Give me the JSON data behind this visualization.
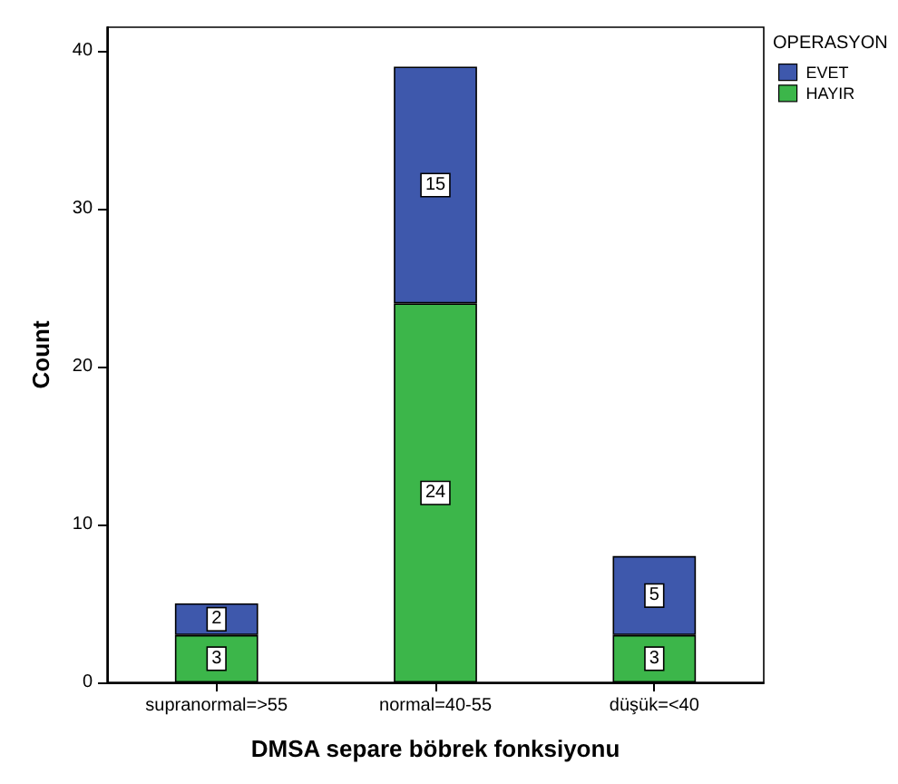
{
  "chart_data": {
    "type": "bar",
    "stacked": true,
    "xlabel": "DMSA separe böbrek fonksiyonu",
    "ylabel": "Count",
    "legend_title": "OPERASYON",
    "legend": "top right",
    "grid": false,
    "data_labels": true,
    "categories": [
      "supranormal=>55",
      "normal=40-55",
      "düşük=<40"
    ],
    "series": [
      {
        "name": "HAYIR",
        "color": "#3cb64a",
        "values": [
          3,
          24,
          3
        ]
      },
      {
        "name": "EVET",
        "color": "#3e58ac",
        "values": [
          2,
          15,
          5
        ]
      }
    ],
    "ylim": [
      0,
      41.5
    ],
    "yticks": [
      0,
      10,
      20,
      30,
      40
    ]
  }
}
